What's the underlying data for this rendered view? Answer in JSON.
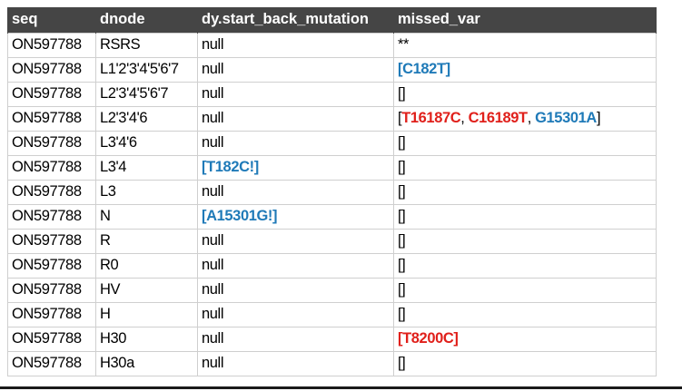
{
  "headers": [
    "seq",
    "dnode",
    "dy.start_back_mutation",
    "missed_var"
  ],
  "rows": [
    {
      "seq": "ON597788",
      "dnode": "RSRS",
      "back": [
        {
          "t": "null",
          "c": "plain"
        }
      ],
      "missed": [
        {
          "t": "**",
          "c": "plain"
        }
      ]
    },
    {
      "seq": "ON597788",
      "dnode": "L1'2'3'4'5'6'7",
      "back": [
        {
          "t": "null",
          "c": "plain"
        }
      ],
      "missed": [
        {
          "t": "[C182T]",
          "c": "blue"
        }
      ]
    },
    {
      "seq": "ON597788",
      "dnode": "L2'3'4'5'6'7",
      "back": [
        {
          "t": "null",
          "c": "plain"
        }
      ],
      "missed": [
        {
          "t": "[]",
          "c": "plain"
        }
      ]
    },
    {
      "seq": "ON597788",
      "dnode": "L2'3'4'6",
      "back": [
        {
          "t": "null",
          "c": "plain"
        }
      ],
      "missed": [
        {
          "t": "[",
          "c": "plain"
        },
        {
          "t": "T16187C",
          "c": "red"
        },
        {
          "t": ", ",
          "c": "plain"
        },
        {
          "t": "C16189T",
          "c": "red"
        },
        {
          "t": ", ",
          "c": "plain"
        },
        {
          "t": "G15301A",
          "c": "blue"
        },
        {
          "t": "]",
          "c": "plain"
        }
      ]
    },
    {
      "seq": "ON597788",
      "dnode": "L3'4'6",
      "back": [
        {
          "t": "null",
          "c": "plain"
        }
      ],
      "missed": [
        {
          "t": "[]",
          "c": "plain"
        }
      ]
    },
    {
      "seq": "ON597788",
      "dnode": "L3'4",
      "back": [
        {
          "t": "[T182C!]",
          "c": "blue"
        }
      ],
      "missed": [
        {
          "t": "[]",
          "c": "plain"
        }
      ]
    },
    {
      "seq": "ON597788",
      "dnode": "L3",
      "back": [
        {
          "t": "null",
          "c": "plain"
        }
      ],
      "missed": [
        {
          "t": "[]",
          "c": "plain"
        }
      ]
    },
    {
      "seq": "ON597788",
      "dnode": "N",
      "back": [
        {
          "t": "[A15301G!]",
          "c": "blue"
        }
      ],
      "missed": [
        {
          "t": "[]",
          "c": "plain"
        }
      ]
    },
    {
      "seq": "ON597788",
      "dnode": "R",
      "back": [
        {
          "t": "null",
          "c": "plain"
        }
      ],
      "missed": [
        {
          "t": "[]",
          "c": "plain"
        }
      ]
    },
    {
      "seq": "ON597788",
      "dnode": "R0",
      "back": [
        {
          "t": "null",
          "c": "plain"
        }
      ],
      "missed": [
        {
          "t": "[]",
          "c": "plain"
        }
      ]
    },
    {
      "seq": "ON597788",
      "dnode": "HV",
      "back": [
        {
          "t": "null",
          "c": "plain"
        }
      ],
      "missed": [
        {
          "t": "[]",
          "c": "plain"
        }
      ]
    },
    {
      "seq": "ON597788",
      "dnode": "H",
      "back": [
        {
          "t": "null",
          "c": "plain"
        }
      ],
      "missed": [
        {
          "t": "[]",
          "c": "plain"
        }
      ]
    },
    {
      "seq": "ON597788",
      "dnode": "H30",
      "back": [
        {
          "t": "null",
          "c": "plain"
        }
      ],
      "missed": [
        {
          "t": "[T8200C]",
          "c": "red"
        }
      ]
    },
    {
      "seq": "ON597788",
      "dnode": "H30a",
      "back": [
        {
          "t": "null",
          "c": "plain"
        }
      ],
      "missed": [
        {
          "t": "[]",
          "c": "plain"
        }
      ]
    }
  ],
  "colors": {
    "header_bg": "#454545",
    "header_text": "#ffffff",
    "blue": "#1f7ab8",
    "red": "#e0201b",
    "grid": "#cfcfcf"
  }
}
